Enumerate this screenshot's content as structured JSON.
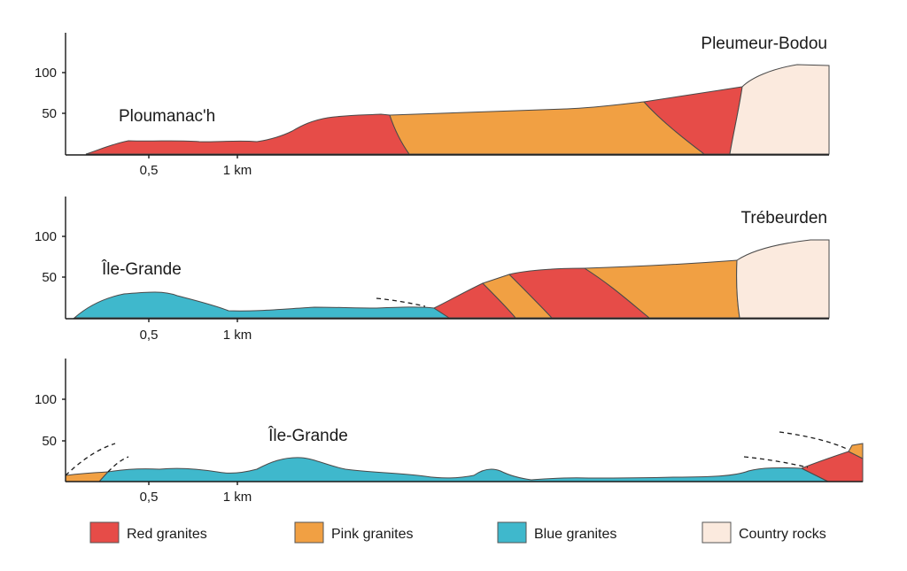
{
  "colors": {
    "red_granites": "#e64c48",
    "pink_granites": "#f1a043",
    "blue_granites": "#3fb8cc",
    "country_rocks": "#fbeade"
  },
  "profiles": [
    {
      "y_ticks": [
        "100",
        "50"
      ],
      "x_ticks": [
        "0,5",
        "1 km"
      ],
      "labels": {
        "left": "Ploumanac'h",
        "right": "Pleumeur-Bodou"
      }
    },
    {
      "y_ticks": [
        "100",
        "50"
      ],
      "x_ticks": [
        "0,5",
        "1 km"
      ],
      "labels": {
        "left": "Île-Grande",
        "right": "Trébeurden"
      }
    },
    {
      "y_ticks": [
        "100",
        "50"
      ],
      "x_ticks": [
        "0,5",
        "1 km"
      ],
      "labels": {
        "center": "Île-Grande"
      }
    }
  ],
  "legend": [
    {
      "label": "Red granites",
      "color": "#e64c48"
    },
    {
      "label": "Pink granites",
      "color": "#f1a043"
    },
    {
      "label": "Blue granites",
      "color": "#3fb8cc"
    },
    {
      "label": "Country rocks",
      "color": "#fbeade"
    }
  ]
}
